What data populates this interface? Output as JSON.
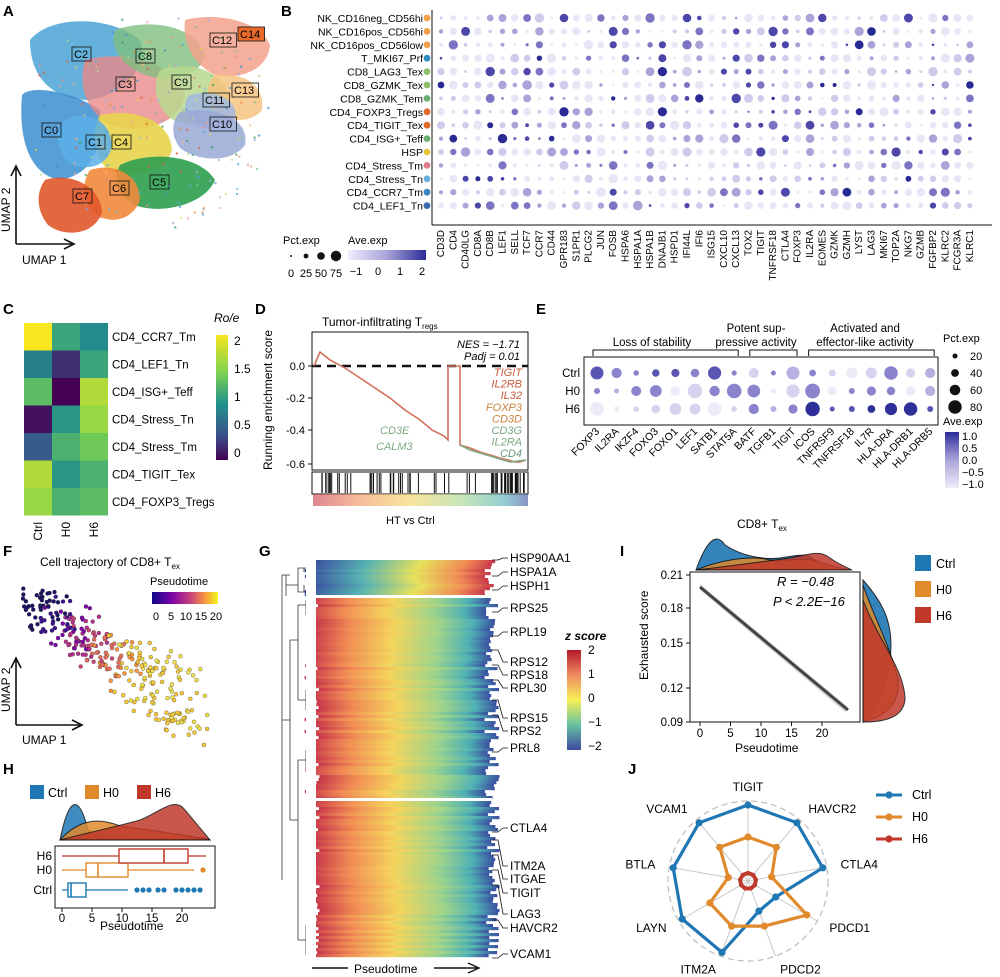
{
  "figure": {
    "panel_labels": [
      "A",
      "B",
      "C",
      "D",
      "E",
      "F",
      "G",
      "H",
      "I",
      "J"
    ]
  },
  "panel_a": {
    "clusters": [
      "C0",
      "C1",
      "C2",
      "C3",
      "C4",
      "C5",
      "C6",
      "C7",
      "C8",
      "C9",
      "C10",
      "C11",
      "C12",
      "C13",
      "C14"
    ],
    "xlabel": "UMAP 1",
    "ylabel": "UMAP 2"
  },
  "panel_b": {
    "rows": [
      "NK_CD16neg_CD56hi",
      "NK_CD16pos_CD56hi",
      "NK_CD16pos_CD56low",
      "T_MKI67_Prf",
      "CD8_LAG3_Tex",
      "CD8_GZMK_Tex",
      "CD8_GZMK_Tem",
      "CD4_FOXP3_Tregs",
      "CD4_TIGIT_Tex",
      "CD4_ISG+_Teff",
      "HSP",
      "CD4_Stress_Tm",
      "CD4_Stress_Tn",
      "CD4_CCR7_Tm",
      "CD4_LEF1_Tn"
    ],
    "genes": [
      "CD3D",
      "CD4",
      "CD40LG",
      "CD8A",
      "CD8B",
      "LEF1",
      "SELL",
      "TCF7",
      "CCR7",
      "CD44",
      "GPR183",
      "S1PR1",
      "PLCG2",
      "JUN",
      "FOSB",
      "HSPA6",
      "HSPA1A",
      "HSPA1B",
      "DNAJB1",
      "HSPD1",
      "IFI44L",
      "IFI6",
      "ISG15",
      "CXCL10",
      "CXCL13",
      "TOX2",
      "TIGIT",
      "TNFRSF18",
      "CTLA4",
      "FOXP3",
      "IL2RA",
      "EOMES",
      "GZMK",
      "GZMH",
      "LYST",
      "LAG3",
      "MKI67",
      "TOP2A",
      "NKG7",
      "GZMB",
      "FGFBP2",
      "KLRC2",
      "FCGR3A",
      "KLRC1"
    ],
    "pct_title": "Pct.exp",
    "pct_ticks": [
      "0",
      "25",
      "50",
      "75"
    ],
    "ave_title": "Ave.exp",
    "ave_ticks": [
      "−1",
      "0",
      "1",
      "2"
    ]
  },
  "panel_c": {
    "rows": [
      "CD4_CCR7_Tm",
      "CD4_LEF1_Tn",
      "CD4_ISG+_Teff",
      "CD4_Stress_Tn",
      "CD4_Stress_Tm",
      "CD4_TIGIT_Tex",
      "CD4_FOXP3_Tregs"
    ],
    "cols": [
      "Ctrl",
      "H0",
      "H6"
    ],
    "values": [
      [
        2.1,
        1.2,
        1.0
      ],
      [
        0.9,
        0.3,
        1.2
      ],
      [
        1.4,
        0.0,
        1.8
      ],
      [
        0.1,
        1.1,
        1.7
      ],
      [
        0.6,
        1.3,
        1.5
      ],
      [
        1.8,
        1.1,
        1.3
      ],
      [
        1.7,
        1.3,
        1.4
      ]
    ],
    "legend_title": "Ro/e",
    "legend_ticks": [
      "2",
      "1.5",
      "1",
      "0.5",
      "0"
    ]
  },
  "panel_d": {
    "title": "Tumor-infiltrating T",
    "title_sub": "regs",
    "ylabel": "Running enrichment score",
    "xlabel": "HT vs Ctrl",
    "nes": "NES = −1.71",
    "padj": "Padj = 0.01",
    "yticks": [
      "0.0",
      "-0.2",
      "-0.4",
      "-0.6"
    ],
    "genes_up": [
      "TIGIT",
      "IL2RB",
      "IL32",
      "FOXP3",
      "CD3D",
      "CD3G",
      "IL2RA",
      "CD4"
    ],
    "genes_left": [
      "CD3E",
      "CALM3"
    ]
  },
  "panel_e": {
    "groups": [
      "Loss of stability",
      "Potent sup-\npressive activity",
      "Activated and\neffector-like activity"
    ],
    "group_line1": [
      "Loss of stability",
      "Potent sup-",
      "Activated and"
    ],
    "group_line2": [
      "",
      "pressive activity",
      "effector-like activity"
    ],
    "rows": [
      "Ctrl",
      "H0",
      "H6"
    ],
    "genes": [
      "FOXP3",
      "IL2RA",
      "IKZF4",
      "FOXO3",
      "FOXO1",
      "LEF1",
      "SATB1",
      "STAT5A",
      "BATF",
      "TGFB1",
      "TIGIT",
      "ICOS",
      "TNFRSF9",
      "TNFRSF18",
      "IL7R",
      "HLA-DRA",
      "HLA-DRB1",
      "HLA-DRB5"
    ],
    "pct_title": "Pct.exp",
    "pct_ticks": [
      "20",
      "40",
      "60",
      "80"
    ],
    "ave_title": "Ave.exp",
    "ave_ticks": [
      "1.0",
      "0.5",
      "0.0",
      "−0.5",
      "−1.0"
    ]
  },
  "panel_f": {
    "title": "Cell trajectory of CD8+ T",
    "title_sub": "ex",
    "legend_title": "Pseudotime",
    "legend_ticks": [
      "0",
      "5",
      "10",
      "15",
      "20"
    ],
    "xlabel": "UMAP 1",
    "ylabel": "UMAP 2"
  },
  "panel_g": {
    "genes": [
      "HSP90AA1",
      "HSPA1A",
      "HSPH1",
      "RPS25",
      "RPL19",
      "RPS12",
      "RPS18",
      "RPL30",
      "RPS15",
      "RPS2",
      "PRL8",
      "CTLA4",
      "ITM2A",
      "ITGAE",
      "TIGIT",
      "LAG3",
      "HAVCR2",
      "VCAM1"
    ],
    "legend_title": "z score",
    "legend_ticks": [
      "2",
      "1",
      "0",
      "−1",
      "−2"
    ],
    "xlabel": "Pseudotime"
  },
  "panel_h": {
    "legend": [
      "Ctrl",
      "H0",
      "H6"
    ],
    "colors": [
      "#1f77b4",
      "#e08a2c",
      "#c0392b"
    ],
    "xlabel": "Pseudotime",
    "xticks": [
      "0",
      "5",
      "10",
      "15",
      "20"
    ],
    "box_stats": [
      {
        "group": "Ctrl",
        "q1": 1,
        "median": 1.5,
        "q3": 4,
        "min": 0,
        "max": 11,
        "outliers": [
          12.5,
          13.5,
          14.5,
          16,
          17,
          19,
          20,
          21,
          22,
          23
        ]
      },
      {
        "group": "H0",
        "q1": 4,
        "median": 6,
        "q3": 11,
        "min": 0,
        "max": 22,
        "outliers": [
          23.5
        ]
      },
      {
        "group": "H6",
        "q1": 9.5,
        "median": 17,
        "q3": 21,
        "min": 0,
        "max": 24,
        "outliers": []
      }
    ]
  },
  "panel_i": {
    "title": "CD8+ T",
    "title_sub": "ex",
    "ylabel": "Exhausted score",
    "xlabel": "Pseudotime",
    "r_text": "R = −0.48",
    "p_text": "P < 2.2E−16",
    "yticks": [
      "0.21",
      "0.18",
      "0.15",
      "0.12",
      "0.09"
    ],
    "xticks": [
      "0",
      "5",
      "10",
      "15",
      "20"
    ],
    "legend": [
      "Ctrl",
      "H0",
      "H6"
    ]
  },
  "panel_j": {
    "axes": [
      "TIGIT",
      "HAVCR2",
      "CTLA4",
      "PDCD1",
      "PDCD2",
      "ITM2A",
      "LAYN",
      "BTLA",
      "VCAM1"
    ],
    "legend": [
      "Ctrl",
      "H0",
      "H6"
    ],
    "series": [
      {
        "name": "Ctrl",
        "values": [
          0.95,
          0.95,
          0.95,
          0.4,
          0.4,
          0.95,
          0.95,
          0.95,
          0.95
        ]
      },
      {
        "name": "H0",
        "values": [
          0.55,
          0.55,
          0.3,
          0.85,
          0.6,
          0.6,
          0.55,
          0.25,
          0.55
        ]
      },
      {
        "name": "H6",
        "values": [
          0.1,
          0.1,
          0.1,
          0.1,
          0.1,
          0.1,
          0.1,
          0.1,
          0.1
        ]
      }
    ]
  },
  "colors": {
    "ctrl": "#1f77b4",
    "h0": "#e08a2c",
    "h6": "#c0392b",
    "accent_purple": "#3b3ba0"
  }
}
